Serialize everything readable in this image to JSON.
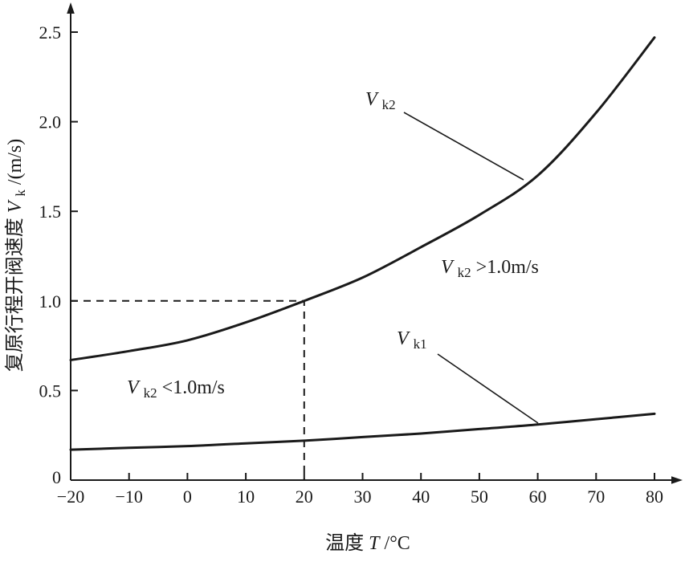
{
  "chart_data": {
    "type": "line",
    "title": "",
    "xlabel": "温度T/°C",
    "ylabel": "复原行程开阀速度Vk/(m/s)",
    "xlim": [
      -20,
      80
    ],
    "ylim": [
      0,
      2.5
    ],
    "grid": false,
    "legend": "none",
    "x_ticks": {
      "values": [
        -20,
        -10,
        0,
        10,
        20,
        30,
        40,
        50,
        60,
        70,
        80
      ],
      "labels": [
        "−20",
        "−10",
        "0",
        "10",
        "20",
        "30",
        "40",
        "50",
        "60",
        "70",
        "80"
      ]
    },
    "y_ticks": {
      "values": [
        0,
        0.5,
        1.0,
        1.5,
        2.0,
        2.5
      ],
      "labels": [
        "0",
        "0.5",
        "1.0",
        "1.5",
        "2.0",
        "2.5"
      ]
    },
    "x": [
      -20,
      -10,
      0,
      10,
      20,
      30,
      40,
      50,
      60,
      70,
      80
    ],
    "series": [
      {
        "name": "Vk2",
        "values": [
          0.67,
          0.72,
          0.78,
          0.88,
          1.0,
          1.13,
          1.3,
          1.48,
          1.7,
          2.05,
          2.47
        ]
      },
      {
        "name": "Vk1",
        "values": [
          0.17,
          0.18,
          0.19,
          0.205,
          0.22,
          0.24,
          0.26,
          0.285,
          0.31,
          0.34,
          0.37
        ]
      }
    ],
    "reference_lines": {
      "dashed_y": 1.0,
      "dashed_x": 20
    }
  },
  "labels": {
    "x_title": {
      "prefix": "温度",
      "var": "T",
      "suffix": "/°C"
    },
    "y_title": {
      "prefix": "复原行程开阀速度",
      "var": "V",
      "sub": "k",
      "suffix": "/(m/s)"
    },
    "curve2_label": {
      "var": "V",
      "sub": "k2"
    },
    "curve1_label": {
      "var": "V",
      "sub": "k1"
    },
    "region_right": {
      "var": "V",
      "sub": "k2",
      "rest": ">1.0m/s"
    },
    "region_left": {
      "var": "V",
      "sub": "k2",
      "rest": "<1.0m/s"
    }
  },
  "colors": {
    "line": "#1a1a1a",
    "background": "#ffffff"
  }
}
